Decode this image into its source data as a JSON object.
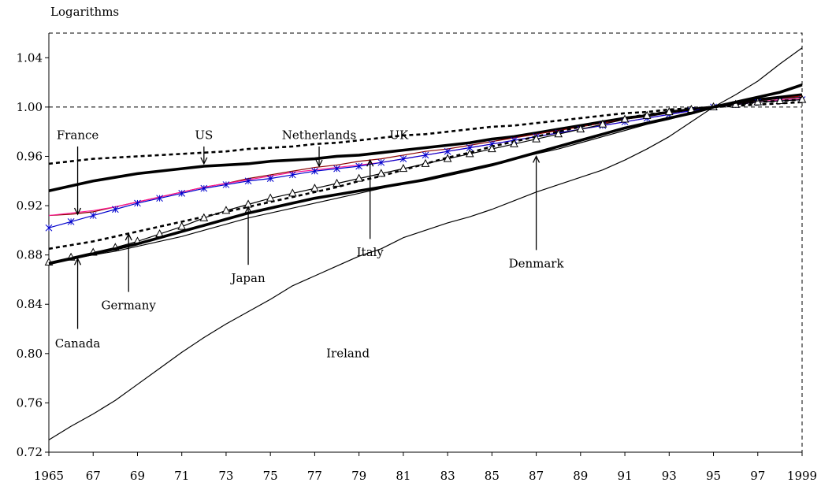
{
  "chart_data": {
    "type": "line",
    "title": "",
    "ylabel": "Logarithms",
    "xlabel": "",
    "ylim": [
      0.72,
      1.06
    ],
    "xlim": [
      1965,
      1999
    ],
    "y_ticks": [
      0.72,
      0.76,
      0.8,
      0.84,
      0.88,
      0.92,
      0.96,
      1.0,
      1.04
    ],
    "y_tick_labels": [
      "0.72",
      "0.76",
      "0.80",
      "0.84",
      "0.88",
      "0.92",
      "0.96",
      "1.00",
      "1.04"
    ],
    "x_ticks": [
      1965,
      1967,
      1969,
      1971,
      1973,
      1975,
      1977,
      1979,
      1981,
      1983,
      1985,
      1987,
      1989,
      1991,
      1993,
      1995,
      1997,
      1999
    ],
    "x_tick_labels": [
      "1965",
      "67",
      "69",
      "71",
      "73",
      "75",
      "77",
      "79",
      "81",
      "83",
      "85",
      "87",
      "89",
      "91",
      "93",
      "95",
      "97",
      "1999"
    ],
    "grid": false,
    "reference_line": 1.0,
    "legend": "none (series labelled by arrows on the plot)",
    "x": [
      1965,
      1966,
      1967,
      1968,
      1969,
      1970,
      1971,
      1972,
      1973,
      1974,
      1975,
      1976,
      1977,
      1978,
      1979,
      1980,
      1981,
      1982,
      1983,
      1984,
      1985,
      1986,
      1987,
      1988,
      1989,
      1990,
      1991,
      1992,
      1993,
      1994,
      1995,
      1996,
      1997,
      1998,
      1999
    ],
    "series": [
      {
        "name": "US",
        "style": "dashed-thick",
        "color": "#000000",
        "values": [
          0.954,
          0.956,
          0.958,
          0.959,
          0.96,
          0.961,
          0.962,
          0.963,
          0.964,
          0.966,
          0.967,
          0.968,
          0.97,
          0.971,
          0.973,
          0.975,
          0.977,
          0.978,
          0.98,
          0.982,
          0.984,
          0.985,
          0.987,
          0.989,
          0.991,
          0.993,
          0.995,
          0.996,
          0.998,
          0.999,
          1.0,
          1.001,
          1.002,
          1.003,
          1.004
        ]
      },
      {
        "name": "UK",
        "style": "solid-extra-thick",
        "color": "#000000",
        "values": [
          0.932,
          0.936,
          0.94,
          0.943,
          0.946,
          0.948,
          0.95,
          0.952,
          0.953,
          0.954,
          0.956,
          0.957,
          0.958,
          0.96,
          0.961,
          0.963,
          0.965,
          0.967,
          0.969,
          0.971,
          0.974,
          0.976,
          0.979,
          0.982,
          0.985,
          0.988,
          0.991,
          0.993,
          0.996,
          0.998,
          1.0,
          1.003,
          1.006,
          1.008,
          1.01
        ]
      },
      {
        "name": "Netherlands",
        "style": "solid-thin",
        "color": "#8b0000",
        "values": [
          0.912,
          0.913,
          0.915,
          0.919,
          0.923,
          0.927,
          0.931,
          0.935,
          0.938,
          0.942,
          0.945,
          0.948,
          0.951,
          0.953,
          0.956,
          0.958,
          0.961,
          0.964,
          0.966,
          0.969,
          0.972,
          0.975,
          0.978,
          0.981,
          0.984,
          0.987,
          0.99,
          0.993,
          0.996,
          0.998,
          1.0,
          1.003,
          1.005,
          1.007,
          1.009
        ]
      },
      {
        "name": "France",
        "style": "solid-thin",
        "color": "#ff1493",
        "values": [
          0.912,
          0.914,
          0.916,
          0.919,
          0.923,
          0.927,
          0.931,
          0.935,
          0.938,
          0.941,
          0.944,
          0.947,
          0.949,
          0.951,
          0.953,
          0.955,
          0.958,
          0.961,
          0.964,
          0.967,
          0.97,
          0.973,
          0.976,
          0.979,
          0.982,
          0.985,
          0.988,
          0.991,
          0.994,
          0.997,
          1.0,
          1.002,
          1.004,
          1.006,
          1.007
        ]
      },
      {
        "name": "Italy",
        "style": "solid-stars",
        "color": "#0000cd",
        "values": [
          0.902,
          0.907,
          0.912,
          0.917,
          0.922,
          0.926,
          0.93,
          0.934,
          0.937,
          0.94,
          0.942,
          0.945,
          0.948,
          0.95,
          0.952,
          0.955,
          0.958,
          0.961,
          0.964,
          0.967,
          0.97,
          0.973,
          0.976,
          0.979,
          0.982,
          0.985,
          0.988,
          0.991,
          0.994,
          0.997,
          1.0,
          1.002,
          1.004,
          1.005,
          1.006
        ]
      },
      {
        "name": "Germany",
        "style": "dashed-thick",
        "color": "#000000",
        "values": [
          0.885,
          0.888,
          0.891,
          0.895,
          0.899,
          0.903,
          0.907,
          0.911,
          0.915,
          0.919,
          0.923,
          0.927,
          0.931,
          0.935,
          0.94,
          0.944,
          0.949,
          0.954,
          0.959,
          0.963,
          0.968,
          0.972,
          0.976,
          0.98,
          0.984,
          0.988,
          0.991,
          0.994,
          0.996,
          0.998,
          1.0,
          1.002,
          1.004,
          1.005,
          1.006
        ]
      },
      {
        "name": "Japan",
        "style": "solid-triangles",
        "color": "#000000",
        "values": [
          0.874,
          0.878,
          0.882,
          0.886,
          0.891,
          0.897,
          0.903,
          0.91,
          0.916,
          0.921,
          0.926,
          0.93,
          0.934,
          0.938,
          0.942,
          0.946,
          0.95,
          0.954,
          0.958,
          0.962,
          0.966,
          0.97,
          0.974,
          0.978,
          0.982,
          0.986,
          0.99,
          0.993,
          0.996,
          0.998,
          1.0,
          1.002,
          1.004,
          1.005,
          1.006
        ]
      },
      {
        "name": "Canada",
        "style": "solid-extra-thick",
        "color": "#000000",
        "values": [
          0.873,
          0.877,
          0.881,
          0.885,
          0.889,
          0.894,
          0.899,
          0.904,
          0.909,
          0.914,
          0.918,
          0.922,
          0.926,
          0.929,
          0.932,
          0.935,
          0.938,
          0.941,
          0.945,
          0.949,
          0.953,
          0.958,
          0.963,
          0.968,
          0.973,
          0.978,
          0.983,
          0.987,
          0.991,
          0.995,
          1.0,
          1.004,
          1.008,
          1.012,
          1.018
        ]
      },
      {
        "name": "Denmark",
        "style": "solid-thin",
        "color": "#000000",
        "values": [
          0.874,
          0.877,
          0.88,
          0.883,
          0.887,
          0.891,
          0.895,
          0.9,
          0.905,
          0.91,
          0.914,
          0.918,
          0.922,
          0.926,
          0.93,
          0.934,
          0.938,
          0.942,
          0.946,
          0.95,
          0.954,
          0.958,
          0.962,
          0.966,
          0.971,
          0.976,
          0.981,
          0.986,
          0.99,
          0.995,
          1.0,
          1.003,
          1.005,
          1.007,
          1.008
        ]
      },
      {
        "name": "Ireland",
        "style": "solid-thin",
        "color": "#000000",
        "values": [
          0.73,
          0.741,
          0.751,
          0.762,
          0.775,
          0.788,
          0.801,
          0.813,
          0.824,
          0.834,
          0.844,
          0.855,
          0.863,
          0.871,
          0.879,
          0.885,
          0.894,
          0.9,
          0.906,
          0.911,
          0.917,
          0.924,
          0.931,
          0.937,
          0.943,
          0.949,
          0.957,
          0.966,
          0.976,
          0.988,
          1.0,
          1.01,
          1.021,
          1.035,
          1.048
        ]
      }
    ],
    "annotations": [
      {
        "text": "France",
        "label_x": 1966.3,
        "label_y": 0.974,
        "arrow_from": [
          1966.3,
          0.968
        ],
        "arrow_to": [
          1966.3,
          0.913
        ]
      },
      {
        "text": "US",
        "label_x": 1972.0,
        "label_y": 0.974,
        "arrow_from": [
          1972.0,
          0.968
        ],
        "arrow_to": [
          1972.0,
          0.954
        ]
      },
      {
        "text": "Netherlands",
        "label_x": 1977.2,
        "label_y": 0.974,
        "arrow_from": [
          1977.2,
          0.968
        ],
        "arrow_to": [
          1977.2,
          0.952
        ]
      },
      {
        "text": "UK",
        "label_x": 1980.8,
        "label_y": 0.974,
        "arrow_from": null,
        "arrow_to": null
      },
      {
        "text": "Italy",
        "label_x": 1979.5,
        "label_y": 0.879,
        "arrow_from": [
          1979.5,
          0.893
        ],
        "arrow_to": [
          1979.5,
          0.957
        ]
      },
      {
        "text": "Denmark",
        "label_x": 1987.0,
        "label_y": 0.87,
        "arrow_from": [
          1987.0,
          0.884
        ],
        "arrow_to": [
          1987.0,
          0.96
        ]
      },
      {
        "text": "Japan",
        "label_x": 1974.0,
        "label_y": 0.858,
        "arrow_from": [
          1974.0,
          0.872
        ],
        "arrow_to": [
          1974.0,
          0.919
        ]
      },
      {
        "text": "Germany",
        "label_x": 1968.6,
        "label_y": 0.836,
        "arrow_from": [
          1968.6,
          0.85
        ],
        "arrow_to": [
          1968.6,
          0.897
        ]
      },
      {
        "text": "Canada",
        "label_x": 1966.3,
        "label_y": 0.805,
        "arrow_from": [
          1966.3,
          0.82
        ],
        "arrow_to": [
          1966.3,
          0.877
        ]
      },
      {
        "text": "Ireland",
        "label_x": 1978.5,
        "label_y": 0.797,
        "arrow_from": null,
        "arrow_to": null
      }
    ]
  }
}
